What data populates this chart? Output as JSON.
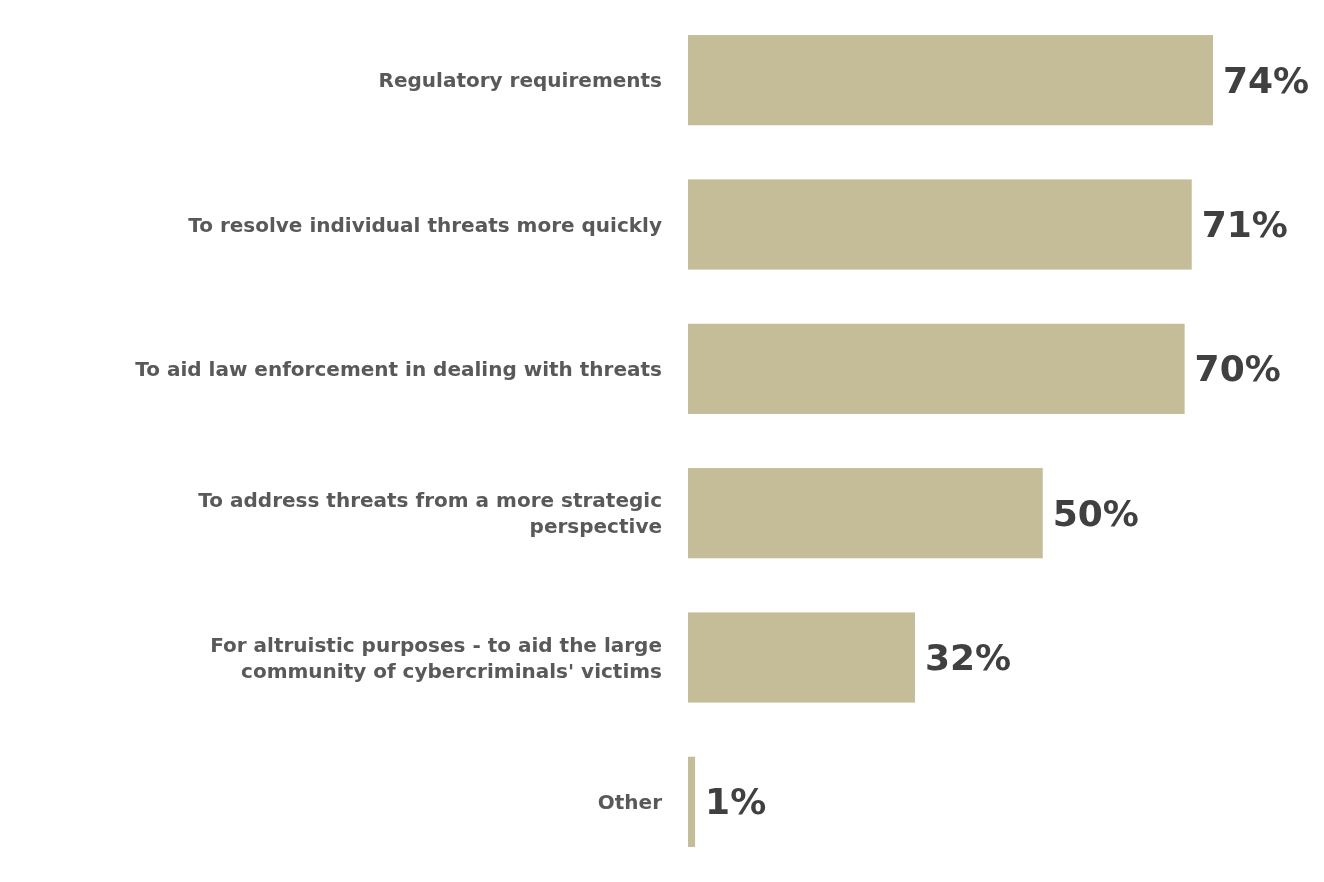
{
  "chart_data": {
    "type": "bar",
    "orientation": "horizontal",
    "categories": [
      "Regulatory requirements",
      "To resolve individual threats more quickly",
      "To aid law enforcement in dealing with threats",
      "To address threats from a more strategic perspective",
      "For altruistic purposes - to aid the large community of cybercriminals' victims",
      "Other"
    ],
    "values": [
      74,
      71,
      70,
      50,
      32,
      1
    ],
    "color": "#c4bd97",
    "data_labels": true,
    "value_labels": [
      "74%",
      "71%",
      "70%",
      "50%",
      "32%",
      "1%"
    ]
  }
}
